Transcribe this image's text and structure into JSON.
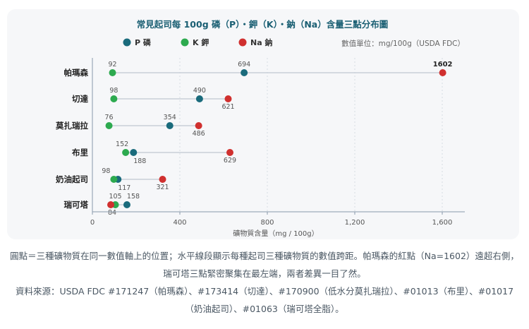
{
  "chart_data": {
    "type": "scatter",
    "title": "常見起司每 100g 磷（P）・鉀（K）・鈉（Na）含量三點分布圖",
    "unit_note": "數值單位：mg/100g（USDA FDC）",
    "xlabel": "礦物質含量（mg / 100g）",
    "ylabel": "",
    "xlim": [
      0,
      1700
    ],
    "x_ticks": [
      0,
      400,
      800,
      1200,
      1600
    ],
    "tick_labels": [
      "0",
      "400",
      "800",
      "1,200",
      "1,600"
    ],
    "grid": true,
    "legend_position": "top",
    "categories": [
      "帕瑪森",
      "切達",
      "莫扎瑞拉",
      "布里",
      "奶油起司",
      "瑞可塔"
    ],
    "series": [
      {
        "name": "P 磷",
        "key": "P",
        "color": "#1a6b7c",
        "values": [
          694,
          490,
          354,
          188,
          117,
          158
        ]
      },
      {
        "name": "K 鉀",
        "key": "K",
        "color": "#2daa4f",
        "values": [
          92,
          98,
          76,
          152,
          98,
          105
        ]
      },
      {
        "name": "Na 鈉",
        "key": "Na",
        "color": "#d0302f",
        "values": [
          1602,
          621,
          486,
          629,
          321,
          84
        ]
      }
    ]
  },
  "caption": {
    "line1": "圓點＝三種礦物質在同一數值軸上的位置；水平線段顯示每種起司三種礦物質的數值跨距。帕瑪森的紅點（Na=1602）遠超右側，瑞可塔三點緊密聚集在最左端，兩者差異一目了然。",
    "line2": "資料來源：USDA FDC #171247（帕瑪森）、#173414（切達）、#170900（低水分莫扎瑞拉）、#01013（布里）、#01017（奶油起司）、#01063（瑞可塔全脂）。"
  }
}
